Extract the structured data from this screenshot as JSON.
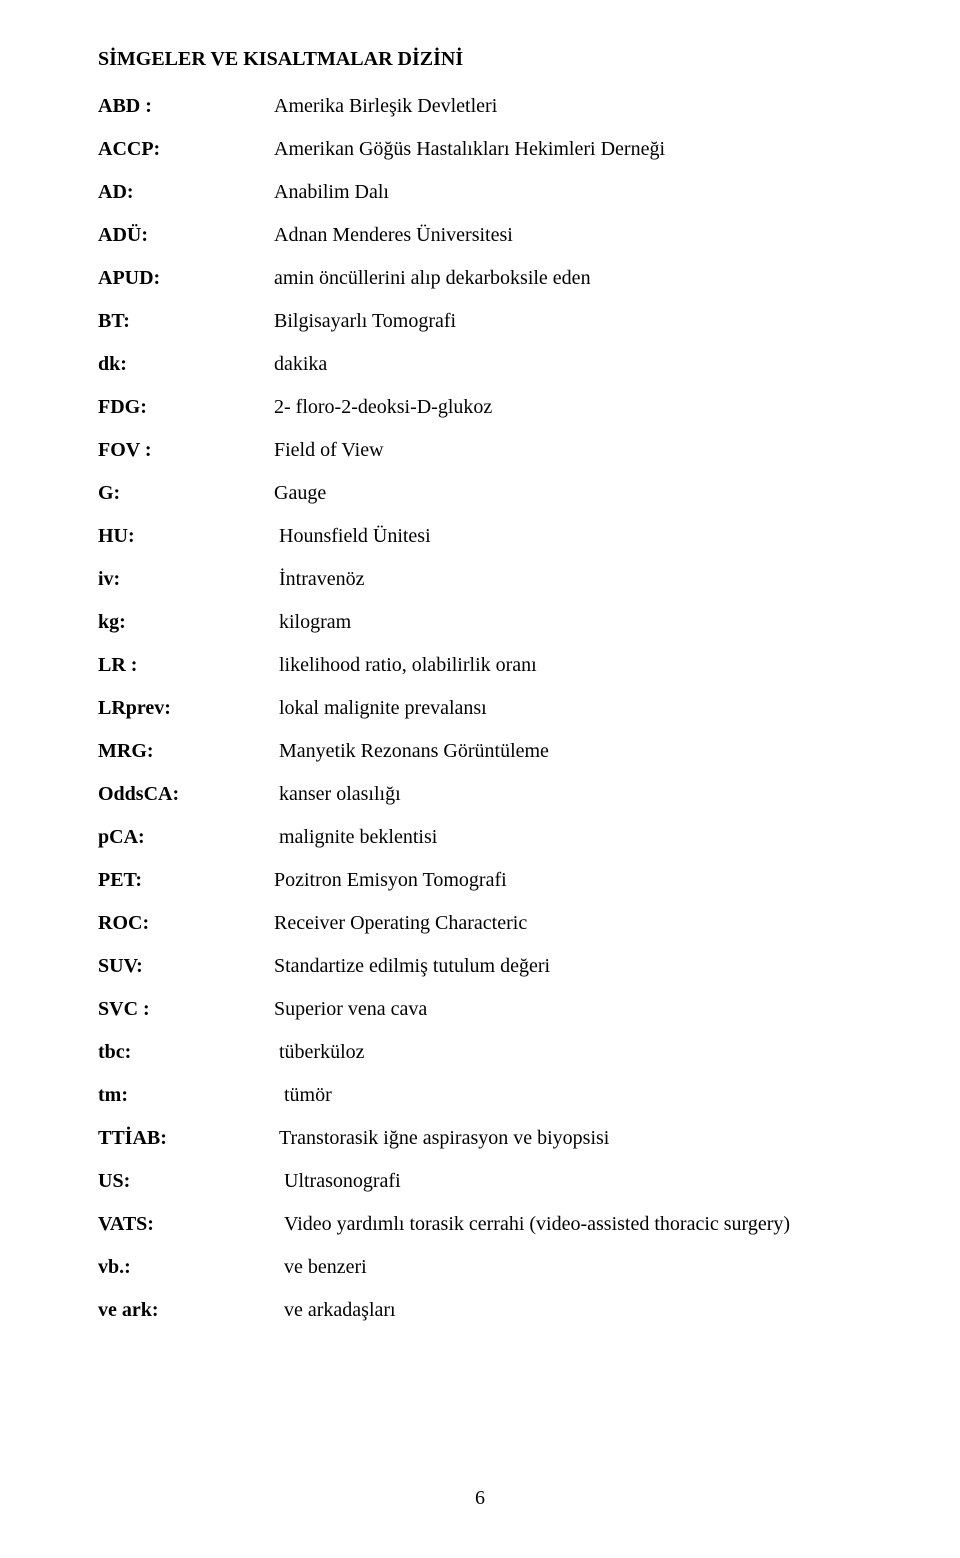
{
  "title": "SİMGELER VE KISALTMALAR DİZİNİ",
  "definitions": [
    {
      "abbr": "ABD :",
      "def": "Amerika Birleşik Devletleri"
    },
    {
      "abbr": "ACCP:",
      "def": "Amerikan Göğüs Hastalıkları Hekimleri Derneği"
    },
    {
      "abbr": "AD:",
      "def": "Anabilim Dalı"
    },
    {
      "abbr": "ADÜ:",
      "def": "Adnan Menderes Üniversitesi"
    },
    {
      "abbr": "APUD:",
      "def": "amin öncüllerini alıp dekarboksile eden"
    },
    {
      "abbr": "BT:",
      "def": "Bilgisayarlı Tomografi"
    },
    {
      "abbr": "dk:",
      "def": "dakika"
    },
    {
      "abbr": "FDG:",
      "def": "2- floro-2-deoksi-D-glukoz"
    },
    {
      "abbr": "FOV :",
      "def": "Field of View"
    },
    {
      "abbr": "G:",
      "def": "Gauge"
    },
    {
      "abbr": "HU:",
      "def": " Hounsfield Ünitesi"
    },
    {
      "abbr": "iv:",
      "def": " İntravenöz"
    },
    {
      "abbr": "kg:",
      "def": " kilogram"
    },
    {
      "abbr": "LR :",
      "def": " likelihood ratio, olabilirlik oranı"
    },
    {
      "abbr": "LRprev:",
      "def": " lokal malignite prevalansı"
    },
    {
      "abbr": "MRG:",
      "def": " Manyetik Rezonans Görüntüleme"
    },
    {
      "abbr": "OddsCA:",
      "def": " kanser olasılığı"
    },
    {
      "abbr": "pCA:",
      "def": " malignite beklentisi"
    },
    {
      "abbr": "PET:",
      "def": "Pozitron Emisyon Tomografi"
    },
    {
      "abbr": "ROC:",
      "def": "Receiver Operating Characteric"
    },
    {
      "abbr": "SUV:",
      "def": "Standartize edilmiş tutulum değeri"
    },
    {
      "abbr": "SVC :",
      "def": "Superior vena cava"
    },
    {
      "abbr": "tbc:",
      "def": " tüberküloz"
    },
    {
      "abbr": "tm:",
      "def": "  tümör"
    },
    {
      "abbr": "TTİAB:",
      "def": " Transtorasik iğne aspirasyon ve biyopsisi"
    },
    {
      "abbr": "US:",
      "def": "  Ultrasonografi"
    },
    {
      "abbr": "VATS:",
      "def": "  Video yardımlı torasik cerrahi (video-assisted thoracic surgery)"
    },
    {
      "abbr": "vb.:",
      "def": "  ve benzeri"
    },
    {
      "abbr": "ve ark:",
      "def": "  ve arkadaşları"
    }
  ],
  "page_number": "6"
}
